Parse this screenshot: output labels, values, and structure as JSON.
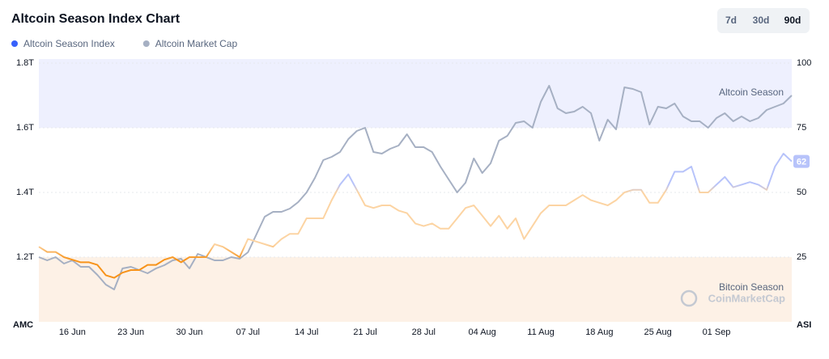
{
  "chart_data": {
    "type": "line",
    "title": "Altcoin Season Index Chart",
    "buttons": [
      "7d",
      "30d",
      "90d"
    ],
    "ylabel": "AMC",
    "y2label": "ASI",
    "annotations": [
      "Altcoin Season",
      "Bitcoin Season",
      "CoinMarketCap"
    ],
    "categories": [
      null,
      null,
      null,
      null,
      "16 Jun",
      null,
      null,
      null,
      null,
      null,
      null,
      "23 Jun",
      null,
      null,
      null,
      null,
      null,
      null,
      "30 Jun",
      null,
      null,
      null,
      null,
      null,
      null,
      "07 Jul",
      null,
      null,
      null,
      null,
      null,
      null,
      "14 Jul",
      null,
      null,
      null,
      null,
      null,
      null,
      "21 Jul",
      null,
      null,
      null,
      null,
      null,
      null,
      "28 Jul",
      null,
      null,
      null,
      null,
      null,
      null,
      "04 Aug",
      null,
      null,
      null,
      null,
      null,
      null,
      "11 Aug",
      null,
      null,
      null,
      null,
      null,
      null,
      "18 Aug",
      null,
      null,
      null,
      null,
      null,
      null,
      "25 Aug",
      null,
      null,
      null,
      null,
      null,
      null,
      "01 Sep",
      null,
      null,
      null,
      null,
      null,
      null,
      null,
      null,
      null
    ],
    "series": [
      {
        "name": "Altcoin Season Index",
        "color": "#3861fb",
        "axis": "y2",
        "values": [
          29,
          27,
          27,
          25,
          24,
          23,
          23,
          22,
          18,
          17,
          19,
          20,
          20,
          22,
          22,
          24,
          25,
          23,
          25,
          25,
          25,
          30,
          29,
          27,
          25,
          32,
          31,
          30,
          29,
          32,
          34,
          34,
          40,
          40,
          40,
          47,
          53,
          57,
          51,
          45,
          44,
          45,
          45,
          43,
          42,
          38,
          37,
          38,
          36,
          36,
          40,
          44,
          45,
          41,
          37,
          41,
          36,
          40,
          32,
          37,
          42,
          45,
          45,
          45,
          47,
          49,
          47,
          46,
          45,
          47,
          50,
          51,
          51,
          46,
          46,
          51,
          58,
          58,
          60,
          50,
          50,
          53,
          56,
          52,
          53,
          54,
          53,
          51,
          60,
          65,
          62
        ]
      },
      {
        "name": "Altcoin Market Cap",
        "color": "#a6b0c3",
        "values": [
          1.2,
          1.19,
          1.2,
          1.18,
          1.19,
          1.17,
          1.17,
          1.145,
          1.115,
          1.1,
          1.165,
          1.17,
          1.16,
          1.15,
          1.165,
          1.175,
          1.19,
          1.195,
          1.165,
          1.21,
          1.2,
          1.19,
          1.19,
          1.2,
          1.195,
          1.215,
          1.27,
          1.325,
          1.34,
          1.34,
          1.35,
          1.37,
          1.4,
          1.445,
          1.5,
          1.51,
          1.525,
          1.565,
          1.59,
          1.6,
          1.525,
          1.52,
          1.535,
          1.545,
          1.58,
          1.54,
          1.54,
          1.525,
          1.48,
          1.44,
          1.4,
          1.43,
          1.505,
          1.46,
          1.49,
          1.56,
          1.575,
          1.615,
          1.62,
          1.6,
          1.68,
          1.73,
          1.66,
          1.645,
          1.65,
          1.665,
          1.645,
          1.56,
          1.625,
          1.595,
          1.725,
          1.72,
          1.71,
          1.61,
          1.665,
          1.66,
          1.675,
          1.635,
          1.62,
          1.62,
          1.6,
          1.63,
          1.645,
          1.62,
          1.635,
          1.62,
          1.63,
          1.655,
          1.665,
          1.675,
          1.7
        ]
      }
    ],
    "ylim": [
      1.0,
      1.8
    ],
    "yticks": [
      {
        "value": 1.2,
        "label": "1.2T"
      },
      {
        "value": 1.4,
        "label": "1.4T"
      },
      {
        "value": 1.6,
        "label": "1.6T"
      },
      {
        "value": 1.8,
        "label": "1.8T"
      }
    ],
    "y2lim": [
      0,
      100
    ],
    "y2ticks": [
      25,
      50,
      75,
      100
    ],
    "grid": true
  }
}
